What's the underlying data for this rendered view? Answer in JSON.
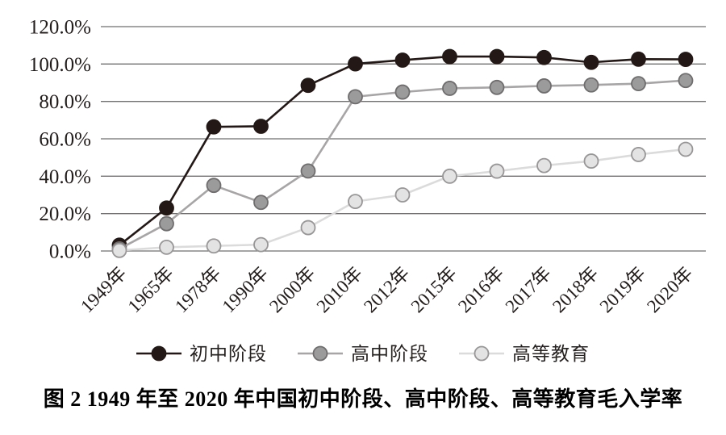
{
  "figure": {
    "caption": "图 2  1949 年至 2020 年中国初中阶段、高中阶段、高等教育毛入学率"
  },
  "chart_data": {
    "type": "line",
    "title": "",
    "xlabel": "",
    "ylabel": "",
    "categories": [
      "1949年",
      "1965年",
      "1978年",
      "1990年",
      "2000年",
      "2010年",
      "2012年",
      "2015年",
      "2016年",
      "2017年",
      "2018年",
      "2019年",
      "2020年"
    ],
    "series": [
      {
        "id": "junior-secondary",
        "name": "初中阶段",
        "values": [
          3.1,
          23.0,
          66.4,
          66.7,
          88.6,
          100.1,
          102.1,
          104.0,
          104.0,
          103.5,
          100.9,
          102.6,
          102.5
        ],
        "line_color": "#231815",
        "marker_fill": "#231815",
        "marker_stroke": "#231815"
      },
      {
        "id": "senior-secondary",
        "name": "高中阶段",
        "values": [
          1.1,
          14.6,
          35.1,
          26.0,
          42.8,
          82.5,
          85.0,
          87.0,
          87.5,
          88.3,
          88.8,
          89.5,
          91.2
        ],
        "line_color": "#a7a5a5",
        "marker_fill": "#9c9b9b",
        "marker_stroke": "#6f6d6d"
      },
      {
        "id": "higher-education",
        "name": "高等教育",
        "values": [
          0.3,
          2.0,
          2.7,
          3.4,
          12.5,
          26.5,
          30.0,
          40.0,
          42.7,
          45.7,
          48.1,
          51.6,
          54.4
        ],
        "line_color": "#dcdbdb",
        "marker_fill": "#e4e3e3",
        "marker_stroke": "#989696"
      }
    ],
    "y_ticks": [
      "120.0%",
      "100.0%",
      "80.0%",
      "60.0%",
      "40.0%",
      "20.0%",
      "0.0%"
    ],
    "ylim": [
      0,
      120
    ],
    "grid": "horizontal",
    "legend_position": "bottom",
    "axis_text_color": "#221d1b",
    "gridline_color": "#716f6f"
  }
}
